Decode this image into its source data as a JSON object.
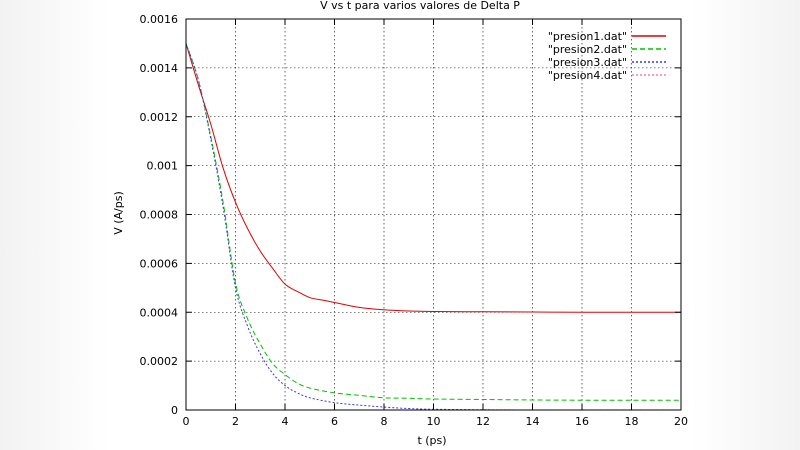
{
  "chart_data": {
    "type": "line",
    "title": "V vs t para varios valores de Delta P",
    "xlabel": "t (ps)",
    "ylabel": "V (A/ps)",
    "xlim": [
      0,
      20
    ],
    "ylim": [
      0,
      0.0016
    ],
    "x_ticks": [
      "0",
      "2",
      "4",
      "6",
      "8",
      "10",
      "12",
      "14",
      "16",
      "18",
      "20"
    ],
    "y_ticks": [
      "0",
      "0.0002",
      "0.0004",
      "0.0006",
      "0.0008",
      "0.001",
      "0.0012",
      "0.0014",
      "0.0016"
    ],
    "grid": true,
    "legend_position": "top-right",
    "series": [
      {
        "name": "\"presion1.dat\"",
        "color": "#e00000",
        "dash": "solid",
        "points": [
          [
            0,
            0.0015
          ],
          [
            0.5,
            0.00133
          ],
          [
            1,
            0.00117
          ],
          [
            1.5,
            0.00099
          ],
          [
            2,
            0.00085
          ],
          [
            2.5,
            0.00074
          ],
          [
            3,
            0.00065
          ],
          [
            3.5,
            0.00058
          ],
          [
            4,
            0.000515
          ],
          [
            4.5,
            0.000485
          ],
          [
            5,
            0.00046
          ],
          [
            5.5,
            0.00045
          ],
          [
            6,
            0.00044
          ],
          [
            7,
            0.00042
          ],
          [
            8,
            0.00041
          ],
          [
            9,
            0.000405
          ],
          [
            10,
            0.000403
          ],
          [
            12,
            0.000402
          ],
          [
            14,
            0.000401
          ],
          [
            16,
            0.0004
          ],
          [
            18,
            0.0004
          ],
          [
            20,
            0.0004
          ]
        ]
      },
      {
        "name": "\"presion2.dat\"",
        "color": "#00c000",
        "dash": "dashed",
        "points": [
          [
            0,
            0.0015
          ],
          [
            0.5,
            0.00135
          ],
          [
            1,
            0.00112
          ],
          [
            1.5,
            0.00085
          ],
          [
            2,
            0.00052
          ],
          [
            2.5,
            0.00037
          ],
          [
            3,
            0.00027
          ],
          [
            3.5,
            0.00019
          ],
          [
            4,
            0.000145
          ],
          [
            4.5,
            0.00011
          ],
          [
            5,
            9e-05
          ],
          [
            6,
            7e-05
          ],
          [
            7,
            6e-05
          ],
          [
            8,
            5e-05
          ],
          [
            9,
            4.8e-05
          ],
          [
            10,
            4.5e-05
          ],
          [
            12,
            4.3e-05
          ],
          [
            14,
            4.1e-05
          ],
          [
            16,
            4e-05
          ],
          [
            18,
            4e-05
          ],
          [
            20,
            4e-05
          ]
        ]
      },
      {
        "name": "\"presion3.dat\"",
        "color": "#3a3ae0",
        "dash": "dotted",
        "points": [
          [
            0,
            0.0015
          ],
          [
            0.5,
            0.00135
          ],
          [
            1,
            0.00111
          ],
          [
            1.5,
            0.00083
          ],
          [
            2,
            0.0005
          ],
          [
            2.5,
            0.00034
          ],
          [
            3,
            0.00023
          ],
          [
            3.5,
            0.00015
          ],
          [
            4,
            0.0001
          ],
          [
            4.5,
            7e-05
          ],
          [
            5,
            5e-05
          ],
          [
            6,
            3e-05
          ],
          [
            7,
            2e-05
          ],
          [
            8,
            1.2e-05
          ],
          [
            9,
            6e-06
          ],
          [
            10,
            3e-06
          ],
          [
            12,
            1e-06
          ],
          [
            14,
            0
          ],
          [
            16,
            0
          ],
          [
            18,
            0
          ],
          [
            20,
            0
          ]
        ]
      },
      {
        "name": "\"presion4.dat\"",
        "color": "#ff80a0",
        "dash": "dotted",
        "points": [
          [
            0,
            0
          ],
          [
            2,
            0
          ],
          [
            4,
            0
          ],
          [
            6,
            0
          ],
          [
            8,
            0
          ],
          [
            10,
            0
          ],
          [
            12,
            0
          ],
          [
            14,
            0
          ],
          [
            16,
            0
          ],
          [
            18,
            0
          ],
          [
            20,
            0
          ]
        ]
      }
    ]
  }
}
